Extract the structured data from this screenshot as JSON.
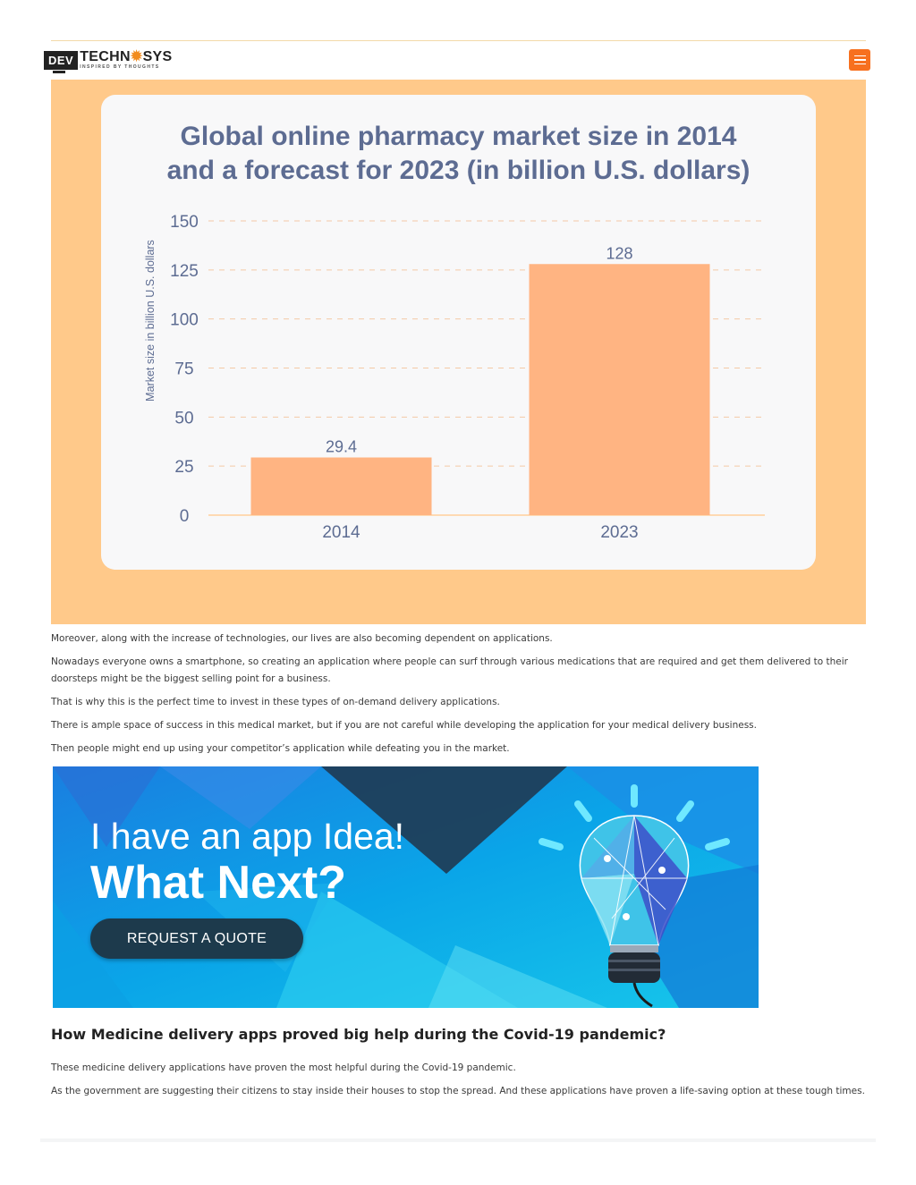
{
  "header": {
    "logo_dev": "DEV",
    "logo_name_a": "TECHN",
    "logo_name_b": "SYS",
    "logo_tagline": "INSPIRED BY THOUGHTS",
    "menu_icon": "hamburger-menu-icon",
    "accent_color": "#f7701f"
  },
  "chart_data": {
    "type": "bar",
    "title": "Global online pharmacy market size in 2014 and a forecast for 2023 (in billion U.S. dollars)",
    "title_line1": "Global online pharmacy market size in 2014",
    "title_line2": "and a forecast for 2023 (in billion U.S. dollars)",
    "categories": [
      "2014",
      "2023"
    ],
    "values": [
      29.4,
      128
    ],
    "value_labels": [
      "29.4",
      "128"
    ],
    "xlabel": "",
    "ylabel": "Market size in  billion U.S. dollars",
    "ylim": [
      0,
      150
    ],
    "yticks": [
      "0",
      "25",
      "50",
      "75",
      "100",
      "125",
      "150"
    ],
    "grid": true,
    "bar_color": "#ffb482",
    "frame_color": "#ffc98a"
  },
  "paragraphs": [
    "Moreover, along with the increase of technologies, our lives are also becoming dependent on applications.",
    "Nowadays everyone owns a smartphone, so creating an application where people can surf through various medications that are required and get them delivered to their doorsteps might be the biggest selling point for a business.",
    "That is why this is the perfect time to invest in these types of on-demand delivery applications.",
    "There is ample space of success in this medical market, but if you are not careful while developing the application for your medical delivery business.",
    "Then people might end up using your competitor’s application while defeating you in the market."
  ],
  "banner": {
    "line1": "I have an app Idea!",
    "line2": "What Next?",
    "button": "REQUEST A QUOTE",
    "icon": "lightbulb-icon"
  },
  "section": {
    "heading": "How Medicine delivery apps proved big help during the Covid-19 pandemic?",
    "paragraphs": [
      "These medicine delivery applications have proven the most helpful during the Covid-19 pandemic.",
      "As the government are suggesting their citizens to stay inside their houses to stop the spread. And these applications have proven a life-saving option at these tough times."
    ]
  }
}
